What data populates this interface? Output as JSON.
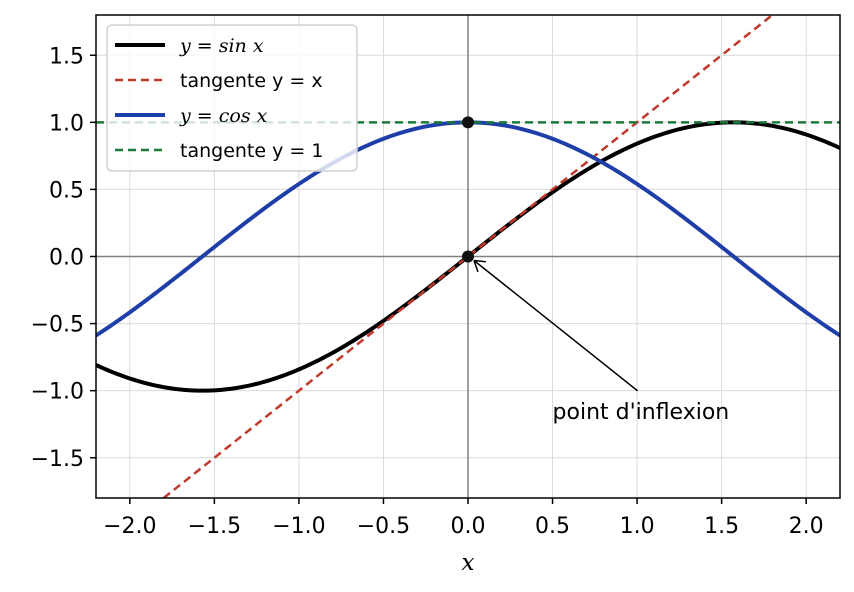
{
  "chart_data": {
    "type": "line",
    "title": "",
    "xlabel": "x",
    "ylabel": "",
    "xlim": [
      -2.2,
      2.2
    ],
    "ylim": [
      -1.8,
      1.8
    ],
    "xticks": [
      -2.0,
      -1.5,
      -1.0,
      -0.5,
      0.0,
      0.5,
      1.0,
      1.5,
      2.0
    ],
    "yticks": [
      -1.5,
      -1.0,
      -0.5,
      0.0,
      0.5,
      1.0,
      1.5
    ],
    "xtick_labels": [
      "−2.0",
      "−1.5",
      "−1.0",
      "−0.5",
      "0.0",
      "0.5",
      "1.0",
      "1.5",
      "2.0"
    ],
    "ytick_labels": [
      "−1.5",
      "−1.0",
      "−0.5",
      "0.0",
      "0.5",
      "1.0",
      "1.5"
    ],
    "grid": true,
    "legend_position": "top-left",
    "series": [
      {
        "name": "y = sin x",
        "legend_label": "y = sin x",
        "style": "solid",
        "color": "#000000",
        "x": [
          -2.2,
          -2.0,
          -1.8,
          -1.6,
          -1.4,
          -1.2,
          -1.0,
          -0.8,
          -0.6,
          -0.4,
          -0.2,
          0.0,
          0.2,
          0.4,
          0.6,
          0.8,
          1.0,
          1.2,
          1.4,
          1.6,
          1.8,
          2.0,
          2.2
        ],
        "y": [
          -0.81,
          -0.91,
          -0.97,
          -1.0,
          -0.99,
          -0.93,
          -0.84,
          -0.72,
          -0.56,
          -0.39,
          -0.2,
          0.0,
          0.2,
          0.39,
          0.56,
          0.72,
          0.84,
          0.93,
          0.99,
          1.0,
          0.97,
          0.91,
          0.81
        ]
      },
      {
        "name": "tangente y = x",
        "legend_label": "tangente y = x",
        "style": "dashed",
        "color": "#c0392b",
        "x": [
          -1.8,
          1.8
        ],
        "y": [
          -1.8,
          1.8
        ]
      },
      {
        "name": "y = cos x",
        "legend_label": "y = cos x",
        "style": "solid",
        "color": "#1f3fa8",
        "x": [
          -2.2,
          -2.0,
          -1.8,
          -1.6,
          -1.4,
          -1.2,
          -1.0,
          -0.8,
          -0.6,
          -0.4,
          -0.2,
          0.0,
          0.2,
          0.4,
          0.6,
          0.8,
          1.0,
          1.2,
          1.4,
          1.6,
          1.8,
          2.0,
          2.2
        ],
        "y": [
          -0.59,
          -0.42,
          -0.23,
          -0.03,
          0.17,
          0.36,
          0.54,
          0.7,
          0.83,
          0.92,
          0.98,
          1.0,
          0.98,
          0.92,
          0.83,
          0.7,
          0.54,
          0.36,
          0.17,
          -0.03,
          -0.23,
          -0.42,
          -0.59
        ]
      },
      {
        "name": "tangente y = 1",
        "legend_label": "tangente y = 1",
        "style": "dashed",
        "color": "#1a7a3a",
        "x": [
          -2.2,
          2.2
        ],
        "y": [
          1.0,
          1.0
        ]
      }
    ],
    "points": [
      {
        "x": 0.0,
        "y": 1.0
      },
      {
        "x": 0.0,
        "y": 0.0
      }
    ],
    "annotation": {
      "text": "point d'inflexion",
      "x": 0.0,
      "y": 0.0,
      "text_x": 0.5,
      "text_y": -1.15
    }
  }
}
